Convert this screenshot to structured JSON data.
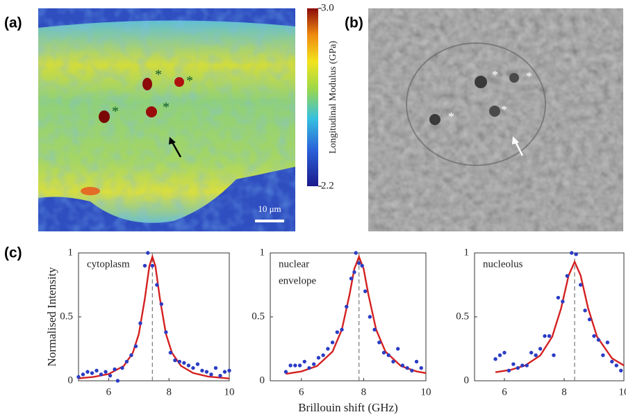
{
  "panel_labels": [
    "(a)",
    "(b)",
    "(c)"
  ],
  "colorbar": {
    "label": "Longitudinal Modulus (GPa)",
    "lim": [
      2.2,
      3.0
    ],
    "ticks": [
      {
        "value": 3.0,
        "label": "3.0"
      },
      {
        "value": 2.2,
        "label": "2.2"
      }
    ]
  },
  "scale_bar": "10 μm",
  "marker": "*",
  "chart_data": [
    {
      "type": "scatter",
      "ylabel": "Normalised Intensity",
      "annotation": [
        "cytoplasm"
      ],
      "xlim": [
        5,
        10
      ],
      "ylim": [
        0,
        1
      ],
      "xticks": [
        6,
        8,
        10
      ],
      "yticks": [
        0,
        0.5,
        1
      ],
      "peak": 7.45,
      "points": {
        "color": "#2b3cc4",
        "x": [
          5.0,
          5.15,
          5.3,
          5.45,
          5.6,
          5.75,
          5.9,
          6.05,
          6.2,
          6.3,
          6.45,
          6.6,
          6.75,
          6.9,
          7.05,
          7.2,
          7.3,
          7.45,
          7.6,
          7.75,
          7.9,
          8.05,
          8.2,
          8.35,
          8.5,
          8.65,
          8.8,
          8.95,
          9.1,
          9.25,
          9.4,
          9.55,
          9.7,
          9.85,
          10.0
        ],
        "values": [
          0.03,
          0.05,
          0.07,
          0.06,
          0.08,
          0.05,
          0.07,
          0.04,
          0.09,
          0.0,
          0.1,
          0.15,
          0.2,
          0.27,
          0.45,
          0.9,
          1.0,
          0.9,
          0.75,
          0.6,
          0.38,
          0.22,
          0.16,
          0.15,
          0.14,
          0.12,
          0.1,
          0.13,
          0.08,
          0.07,
          0.05,
          0.1,
          0.04,
          0.07,
          0.08
        ]
      },
      "fit": {
        "color": "#d42020",
        "x": [
          5,
          5.5,
          6,
          6.5,
          6.8,
          7,
          7.2,
          7.35,
          7.45,
          7.55,
          7.7,
          7.9,
          8.1,
          8.4,
          8.8,
          9.3,
          10
        ],
        "values": [
          0.019,
          0.03,
          0.053,
          0.116,
          0.218,
          0.366,
          0.642,
          0.897,
          0.97,
          0.897,
          0.642,
          0.366,
          0.218,
          0.116,
          0.061,
          0.033,
          0.018
        ]
      }
    },
    {
      "type": "scatter",
      "xlabel": "Brillouin shift (GHz)",
      "annotation": [
        "nuclear",
        "envelope"
      ],
      "xlim": [
        5,
        10
      ],
      "ylim": [
        0,
        1
      ],
      "xticks": [
        6,
        8,
        10
      ],
      "yticks": [
        0,
        0.5,
        1
      ],
      "peak": 7.85,
      "points": {
        "color": "#2b3cc4",
        "x": [
          5.5,
          5.65,
          5.8,
          5.95,
          6.1,
          6.25,
          6.4,
          6.55,
          6.7,
          6.85,
          7.0,
          7.15,
          7.3,
          7.45,
          7.6,
          7.7,
          7.75,
          7.85,
          7.95,
          8.05,
          8.2,
          8.35,
          8.5,
          8.65,
          8.8,
          8.95,
          9.1,
          9.25,
          9.4,
          9.55,
          9.7,
          9.85
        ],
        "values": [
          0.07,
          0.12,
          0.12,
          0.12,
          0.15,
          0.1,
          0.13,
          0.18,
          0.2,
          0.25,
          0.3,
          0.38,
          0.4,
          0.58,
          0.8,
          0.85,
          1.0,
          0.92,
          0.9,
          0.7,
          0.5,
          0.4,
          0.3,
          0.22,
          0.2,
          0.15,
          0.25,
          0.12,
          0.1,
          0.08,
          0.15,
          0.1
        ]
      },
      "fit": {
        "color": "#d42020",
        "x": [
          5.5,
          6,
          6.5,
          7,
          7.3,
          7.55,
          7.7,
          7.85,
          8,
          8.15,
          8.4,
          8.7,
          9.2,
          9.7,
          10
        ],
        "values": [
          0.054,
          0.073,
          0.115,
          0.228,
          0.401,
          0.678,
          0.875,
          0.97,
          0.875,
          0.678,
          0.401,
          0.228,
          0.115,
          0.073,
          0.06
        ]
      }
    },
    {
      "type": "scatter",
      "annotation": [
        "nucleolus"
      ],
      "xlim": [
        5,
        10
      ],
      "ylim": [
        0,
        1
      ],
      "xticks": [
        6,
        8,
        10
      ],
      "yticks": [
        0,
        0.5,
        1
      ],
      "peak": 8.35,
      "points": {
        "color": "#2b3cc4",
        "x": [
          5.7,
          5.85,
          6.0,
          6.15,
          6.3,
          6.45,
          6.6,
          6.75,
          6.9,
          7.05,
          7.2,
          7.35,
          7.5,
          7.65,
          7.8,
          7.95,
          8.1,
          8.25,
          8.4,
          8.55,
          8.7,
          8.85,
          9.0,
          9.15,
          9.3,
          9.45,
          9.6,
          9.75,
          9.9
        ],
        "values": [
          0.17,
          0.2,
          0.22,
          0.08,
          0.13,
          0.1,
          0.12,
          0.12,
          0.22,
          0.2,
          0.25,
          0.35,
          0.35,
          0.2,
          0.65,
          0.62,
          0.82,
          1.0,
          0.99,
          0.75,
          0.55,
          0.48,
          0.35,
          0.32,
          0.2,
          0.3,
          0.15,
          0.12,
          0.08
        ]
      },
      "fit": {
        "color": "#d42020",
        "x": [
          5.7,
          6.2,
          6.7,
          7.2,
          7.6,
          7.9,
          8.15,
          8.35,
          8.55,
          8.8,
          9.1,
          9.6,
          10
        ],
        "values": [
          0.067,
          0.085,
          0.12,
          0.198,
          0.345,
          0.569,
          0.825,
          0.93,
          0.825,
          0.569,
          0.345,
          0.176,
          0.12
        ]
      }
    }
  ]
}
